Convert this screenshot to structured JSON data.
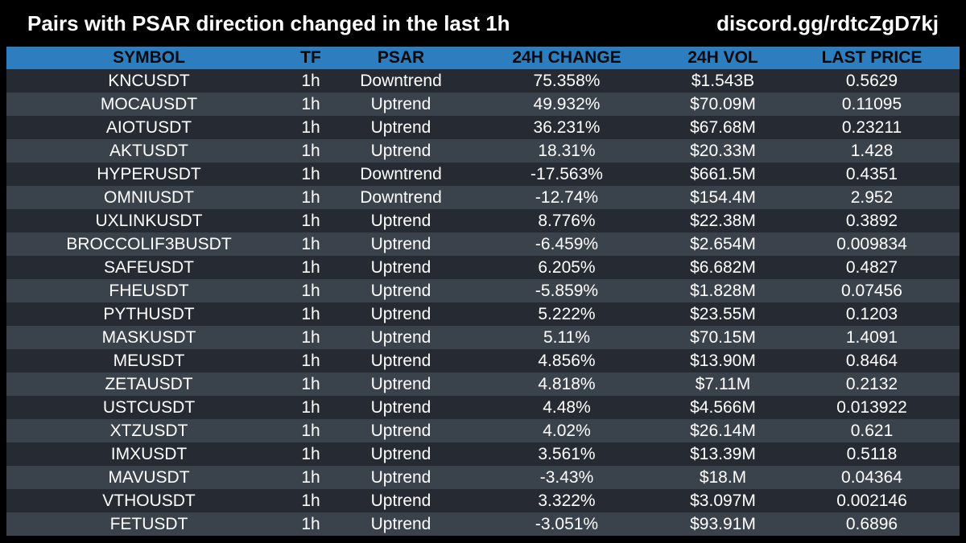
{
  "header": {
    "title": "Pairs with PSAR direction changed in the last 1h",
    "link": "discord.gg/rdtcZgD7kj"
  },
  "colors": {
    "background": "#000000",
    "header_row": "#2e7dbf",
    "row_dark": "#262b33",
    "row_light": "#3a424c",
    "text": "#ffffff"
  },
  "table": {
    "columns": [
      "SYMBOL",
      "TF",
      "PSAR",
      "24H CHANGE",
      "24H VOL",
      "LAST PRICE"
    ],
    "rows": [
      [
        "KNCUSDT",
        "1h",
        "Downtrend",
        "75.358%",
        "$1.543B",
        "0.5629"
      ],
      [
        "MOCAUSDT",
        "1h",
        "Uptrend",
        "49.932%",
        "$70.09M",
        "0.11095"
      ],
      [
        "AIOTUSDT",
        "1h",
        "Uptrend",
        "36.231%",
        "$67.68M",
        "0.23211"
      ],
      [
        "AKTUSDT",
        "1h",
        "Uptrend",
        "18.31%",
        "$20.33M",
        "1.428"
      ],
      [
        "HYPERUSDT",
        "1h",
        "Downtrend",
        "-17.563%",
        "$661.5M",
        "0.4351"
      ],
      [
        "OMNIUSDT",
        "1h",
        "Downtrend",
        "-12.74%",
        "$154.4M",
        "2.952"
      ],
      [
        "UXLINKUSDT",
        "1h",
        "Uptrend",
        "8.776%",
        "$22.38M",
        "0.3892"
      ],
      [
        "BROCCOLIF3BUSDT",
        "1h",
        "Uptrend",
        "-6.459%",
        "$2.654M",
        "0.009834"
      ],
      [
        "SAFEUSDT",
        "1h",
        "Uptrend",
        "6.205%",
        "$6.682M",
        "0.4827"
      ],
      [
        "FHEUSDT",
        "1h",
        "Uptrend",
        "-5.859%",
        "$1.828M",
        "0.07456"
      ],
      [
        "PYTHUSDT",
        "1h",
        "Uptrend",
        "5.222%",
        "$23.55M",
        "0.1203"
      ],
      [
        "MASKUSDT",
        "1h",
        "Uptrend",
        "5.11%",
        "$70.15M",
        "1.4091"
      ],
      [
        "MEUSDT",
        "1h",
        "Uptrend",
        "4.856%",
        "$13.90M",
        "0.8464"
      ],
      [
        "ZETAUSDT",
        "1h",
        "Uptrend",
        "4.818%",
        "$7.11M",
        "0.2132"
      ],
      [
        "USTCUSDT",
        "1h",
        "Uptrend",
        "4.48%",
        "$4.566M",
        "0.013922"
      ],
      [
        "XTZUSDT",
        "1h",
        "Uptrend",
        "4.02%",
        "$26.14M",
        "0.621"
      ],
      [
        "IMXUSDT",
        "1h",
        "Uptrend",
        "3.561%",
        "$13.39M",
        "0.5118"
      ],
      [
        "MAVUSDT",
        "1h",
        "Uptrend",
        "-3.43%",
        "$18.M",
        "0.04364"
      ],
      [
        "VTHOUSDT",
        "1h",
        "Uptrend",
        "3.322%",
        "$3.097M",
        "0.002146"
      ],
      [
        "FETUSDT",
        "1h",
        "Uptrend",
        "-3.051%",
        "$93.91M",
        "0.6896"
      ]
    ]
  }
}
